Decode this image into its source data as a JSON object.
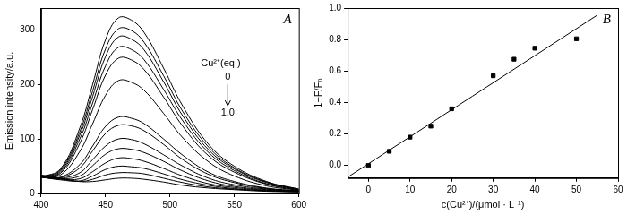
{
  "chart_data": [
    {
      "type": "line",
      "title": "A",
      "y_label": "Emission intensity/a.u.",
      "x": [
        400,
        415,
        430,
        440,
        450,
        460,
        470,
        480,
        495,
        510,
        530,
        550,
        575,
        600
      ],
      "xlim": [
        400,
        600
      ],
      "xticks": [
        400,
        450,
        500,
        550,
        600
      ],
      "ylim": [
        0,
        340
      ],
      "yticks": [
        0,
        100,
        200,
        300
      ],
      "grid": false,
      "annotations": [
        "Cu²⁺(eq.)",
        "0",
        "1.0"
      ],
      "series": [
        {
          "color": "#000000",
          "line_style": "solid",
          "values": [
            30,
            45,
            120,
            200,
            282,
            322,
            318,
            295,
            230,
            160,
            90,
            50,
            22,
            8
          ]
        },
        {
          "color": "#000000",
          "line_style": "solid",
          "values": [
            30,
            43,
            113,
            188,
            265,
            302,
            299,
            277,
            216,
            150,
            85,
            47,
            21,
            8
          ]
        },
        {
          "color": "#000000",
          "line_style": "solid",
          "values": [
            30,
            41,
            107,
            178,
            251,
            287,
            283,
            263,
            205,
            142,
            80,
            45,
            20,
            7
          ]
        },
        {
          "color": "#000000",
          "line_style": "solid",
          "values": [
            30,
            39,
            100,
            166,
            234,
            268,
            264,
            245,
            191,
            133,
            75,
            42,
            18,
            7
          ]
        },
        {
          "color": "#000000",
          "line_style": "solid",
          "values": [
            30,
            37,
            92,
            154,
            217,
            248,
            245,
            227,
            177,
            123,
            69,
            39,
            17,
            6
          ]
        },
        {
          "color": "#000000",
          "line_style": "solid",
          "values": [
            30,
            34,
            77,
            128,
            180,
            207,
            204,
            189,
            147,
            102,
            58,
            32,
            14,
            6
          ]
        },
        {
          "color": "#000000",
          "line_style": "solid",
          "values": [
            30,
            30,
            53,
            87,
            123,
            140,
            138,
            128,
            100,
            70,
            39,
            22,
            10,
            5
          ]
        },
        {
          "color": "#000000",
          "line_style": "solid",
          "values": [
            30,
            29,
            47,
            78,
            110,
            125,
            124,
            115,
            90,
            62,
            35,
            20,
            9,
            5
          ]
        },
        {
          "color": "#000000",
          "line_style": "solid",
          "values": [
            30,
            28,
            38,
            62,
            87,
            100,
            99,
            91,
            71,
            50,
            28,
            16,
            8,
            4
          ]
        },
        {
          "color": "#000000",
          "line_style": "solid",
          "values": [
            30,
            27,
            32,
            51,
            72,
            82,
            81,
            75,
            59,
            41,
            23,
            13,
            7,
            4
          ]
        },
        {
          "color": "#000000",
          "line_style": "solid",
          "values": [
            30,
            26,
            27,
            40,
            56,
            65,
            64,
            59,
            46,
            32,
            18,
            11,
            6,
            4
          ]
        },
        {
          "color": "#000000",
          "line_style": "solid",
          "values": [
            30,
            25,
            23,
            32,
            44,
            50,
            49,
            46,
            36,
            25,
            15,
            9,
            5,
            3
          ]
        },
        {
          "color": "#000000",
          "line_style": "solid",
          "values": [
            32,
            27,
            22,
            26,
            34,
            38,
            38,
            36,
            28,
            20,
            12,
            8,
            5,
            3
          ]
        },
        {
          "color": "#000000",
          "line_style": "solid",
          "values": [
            34,
            28,
            22,
            22,
            25,
            28,
            28,
            26,
            21,
            15,
            10,
            7,
            4,
            3
          ]
        }
      ]
    },
    {
      "type": "scatter",
      "title": "B",
      "x_label": "c(Cu²⁺)/(μmol · L⁻¹)",
      "y_label": "1−F/F₀",
      "xlim": [
        -5,
        60
      ],
      "xticks": [
        0,
        10,
        20,
        30,
        40,
        50,
        60
      ],
      "ylim": [
        -0.08,
        1.0
      ],
      "yticks": [
        {
          "value": 0,
          "label": "0.0"
        },
        {
          "value": 0.2,
          "label": "0.2"
        },
        {
          "value": 0.4,
          "label": "0.4"
        },
        {
          "value": 0.6,
          "label": "0.6"
        },
        {
          "value": 0.8,
          "label": "0.8"
        },
        {
          "value": 1.0,
          "label": "1.0"
        }
      ],
      "grid": false,
      "series": [
        {
          "type": "scatter",
          "marker": "square",
          "color": "#000000",
          "x": [
            0,
            5,
            10,
            15,
            20,
            30,
            35,
            40,
            50
          ],
          "values": [
            0,
            0.09,
            0.18,
            0.25,
            0.36,
            0.57,
            0.675,
            0.745,
            0.805
          ]
        },
        {
          "type": "line",
          "line_style": "solid",
          "color": "#000000",
          "x": [
            -5,
            55
          ],
          "values": [
            -0.075,
            0.955
          ]
        }
      ]
    }
  ]
}
